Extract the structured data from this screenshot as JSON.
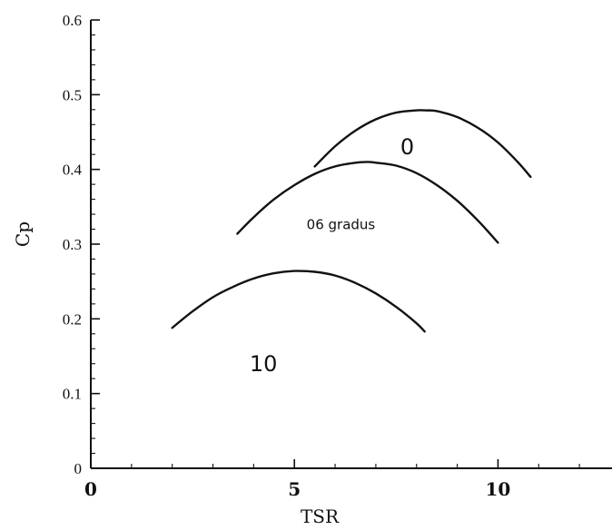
{
  "chart_data": {
    "type": "line",
    "title": "",
    "xlabel": "TSR",
    "ylabel": "Cp",
    "xlim": [
      0,
      12.8
    ],
    "ylim": [
      0,
      0.6
    ],
    "x_ticks": [
      0,
      5,
      10
    ],
    "x_tick_labels": [
      "0",
      "5",
      "10"
    ],
    "y_ticks": [
      0,
      0.1,
      0.2,
      0.3,
      0.4,
      0.5,
      0.6
    ],
    "y_tick_labels": [
      "0",
      "0.1",
      "0.2",
      "0.3",
      "0.4",
      "0.5",
      "0.6"
    ],
    "grid": false,
    "legend": "none",
    "series": [
      {
        "x": [
          5.5,
          6.0,
          6.5,
          7.0,
          7.5,
          8.0,
          8.2,
          8.5,
          9.0,
          9.5,
          10.0,
          10.5,
          10.8
        ],
        "y": [
          0.404,
          0.431,
          0.452,
          0.467,
          0.476,
          0.479,
          0.479,
          0.478,
          0.47,
          0.456,
          0.436,
          0.409,
          0.39
        ]
      },
      {
        "x": [
          3.6,
          4.0,
          4.5,
          5.0,
          5.5,
          6.0,
          6.5,
          6.8,
          7.0,
          7.5,
          8.0,
          8.5,
          9.0,
          9.5,
          10.0
        ],
        "y": [
          0.314,
          0.336,
          0.36,
          0.379,
          0.394,
          0.404,
          0.409,
          0.41,
          0.409,
          0.405,
          0.395,
          0.379,
          0.358,
          0.332,
          0.302
        ]
      },
      {
        "x": [
          2.0,
          2.5,
          3.0,
          3.5,
          4.0,
          4.5,
          5.0,
          5.5,
          6.0,
          6.5,
          7.0,
          7.5,
          8.0,
          8.2
        ],
        "y": [
          0.188,
          0.21,
          0.229,
          0.243,
          0.254,
          0.261,
          0.264,
          0.263,
          0.258,
          0.248,
          0.234,
          0.216,
          0.194,
          0.183
        ]
      }
    ],
    "annotations": [
      {
        "text": "0",
        "x": 7.6,
        "y": 0.42,
        "style": "large"
      },
      {
        "text": "06 gradus",
        "x": 5.3,
        "y": 0.32,
        "style": "small"
      },
      {
        "text": "10",
        "x": 3.9,
        "y": 0.13,
        "style": "large"
      }
    ],
    "line_color": "#111111",
    "axis_color": "#111111"
  }
}
